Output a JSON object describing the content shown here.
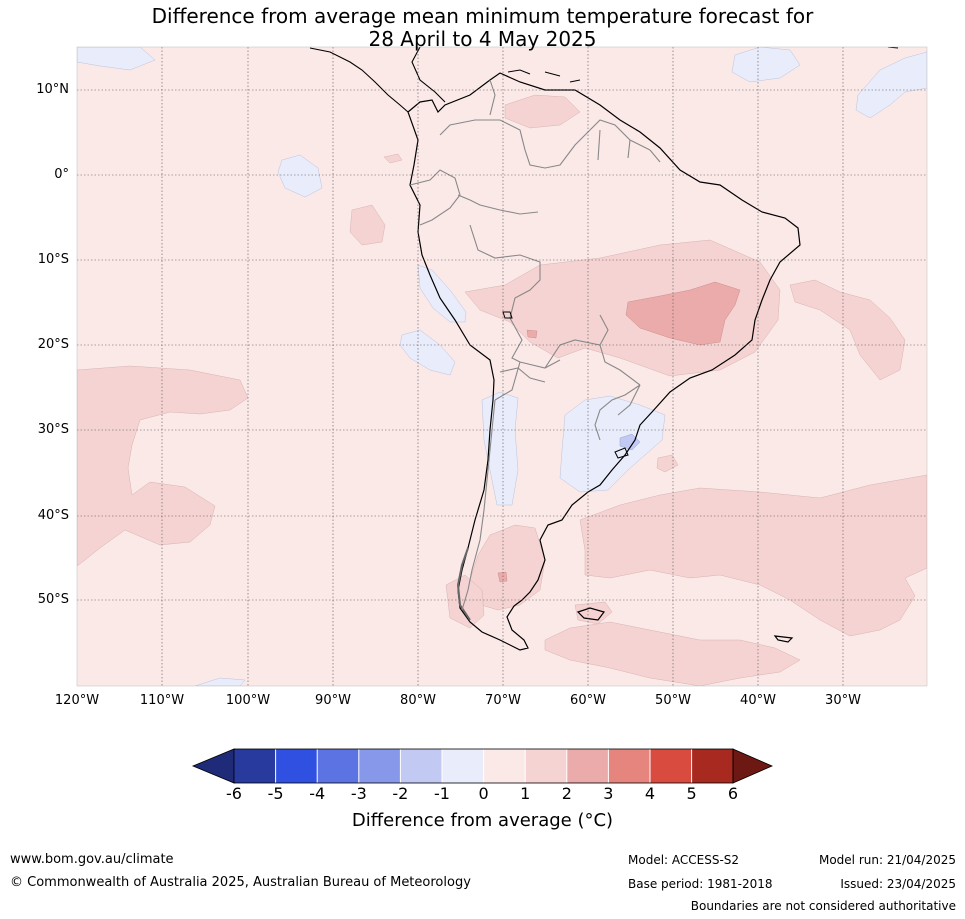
{
  "title": {
    "line1": "Difference from average mean minimum temperature forecast for",
    "line2": "28 April to 4 May 2025"
  },
  "map": {
    "lat_labels": [
      "10°N",
      "0°",
      "10°S",
      "20°S",
      "30°S",
      "40°S",
      "50°S"
    ],
    "lon_labels": [
      "120°W",
      "110°W",
      "100°W",
      "90°W",
      "80°W",
      "70°W",
      "60°W",
      "50°W",
      "40°W",
      "30°W"
    ],
    "background_anomaly": "0 to 1",
    "region": "South America"
  },
  "colorbar": {
    "ticks": [
      "-6",
      "-5",
      "-4",
      "-3",
      "-2",
      "-1",
      "0",
      "1",
      "2",
      "3",
      "4",
      "5",
      "6"
    ],
    "colors": [
      "#283a9e",
      "#2f50e0",
      "#5c73e3",
      "#8798ea",
      "#c2c9f2",
      "#e9ecfa",
      "#fbe9e8",
      "#f5d3d2",
      "#eaabaa",
      "#e6857e",
      "#d94a3f",
      "#a8291f"
    ],
    "under_color": "#1f2a78",
    "over_color": "#6e1814",
    "label": "Difference from average ($^\\circ$C)",
    "label_display": "Difference from average (°C)"
  },
  "footer": {
    "url": "www.bom.gov.au/climate",
    "copyright": "© Commonwealth of Australia 2025, Australian Bureau of Meteorology",
    "model": "Model: ACCESS-S2",
    "base_period": "Base period: 1981-2018",
    "model_run": "Model run: 21/04/2025",
    "issued": "Issued: 23/04/2025",
    "disclaimer": "Boundaries are not considered authoritative"
  }
}
